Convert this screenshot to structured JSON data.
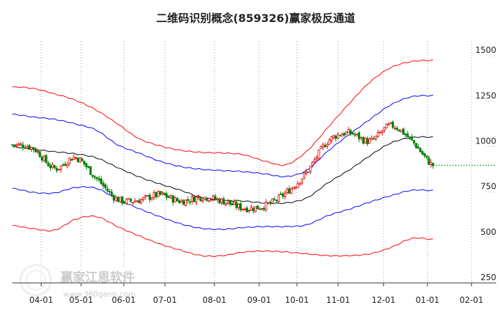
{
  "chart_data": {
    "type": "candlestick",
    "title": "二维码识别概念(859326)赢家极反通道",
    "xlabel": "",
    "ylabel": "",
    "y_ticks": [
      250,
      500,
      750,
      1000,
      1250,
      1500
    ],
    "ylim": [
      250,
      1580
    ],
    "x_ticks": [
      "04-01",
      "05-01",
      "06-01",
      "07-01",
      "08-01",
      "09-01",
      "10-01",
      "11-01",
      "12-01",
      "01-01",
      "02-01"
    ],
    "grid": "vertical dotted",
    "colors": {
      "up": "#e00000",
      "down": "#008000",
      "outer_band": "#ff0000",
      "inner_band": "#0000ff",
      "midline": "#000000",
      "last_price": "#008000"
    },
    "last_price": 897,
    "months": [
      {
        "m": "03-15",
        "close": 1010,
        "outer_upper": 1328,
        "inner_upper": 1178,
        "mid": 1000,
        "inner_lower": 770,
        "outer_lower": 565
      },
      {
        "m": "04-01",
        "close": 990,
        "outer_upper": 1320,
        "inner_upper": 1163,
        "mid": 985,
        "inner_lower": 748,
        "outer_lower": 548
      },
      {
        "m": "04-15",
        "close": 880,
        "outer_upper": 1290,
        "inner_upper": 1150,
        "mid": 972,
        "inner_lower": 745,
        "outer_lower": 540
      },
      {
        "m": "05-01",
        "close": 940,
        "outer_upper": 1255,
        "inner_upper": 1125,
        "mid": 960,
        "inner_lower": 775,
        "outer_lower": 600
      },
      {
        "m": "05-15",
        "close": 825,
        "outer_upper": 1200,
        "inner_upper": 1090,
        "mid": 938,
        "inner_lower": 770,
        "outer_lower": 615
      },
      {
        "m": "06-01",
        "close": 710,
        "outer_upper": 1125,
        "inner_upper": 1010,
        "mid": 885,
        "inner_lower": 710,
        "outer_lower": 560
      },
      {
        "m": "06-15",
        "close": 705,
        "outer_upper": 1045,
        "inner_upper": 965,
        "mid": 835,
        "inner_lower": 660,
        "outer_lower": 510
      },
      {
        "m": "07-01",
        "close": 735,
        "outer_upper": 1005,
        "inner_upper": 920,
        "mid": 795,
        "inner_lower": 615,
        "outer_lower": 465
      },
      {
        "m": "07-15",
        "close": 700,
        "outer_upper": 980,
        "inner_upper": 890,
        "mid": 760,
        "inner_lower": 575,
        "outer_lower": 430
      },
      {
        "m": "08-01",
        "close": 722,
        "outer_upper": 968,
        "inner_upper": 875,
        "mid": 720,
        "inner_lower": 550,
        "outer_lower": 400
      },
      {
        "m": "08-15",
        "close": 700,
        "outer_upper": 965,
        "inner_upper": 868,
        "mid": 705,
        "inner_lower": 545,
        "outer_lower": 400
      },
      {
        "m": "09-01",
        "close": 662,
        "outer_upper": 955,
        "inner_upper": 862,
        "mid": 700,
        "inner_lower": 555,
        "outer_lower": 420
      },
      {
        "m": "09-15",
        "close": 675,
        "outer_upper": 920,
        "inner_upper": 850,
        "mid": 690,
        "inner_lower": 560,
        "outer_lower": 425
      },
      {
        "m": "10-01",
        "close": 745,
        "outer_upper": 900,
        "inner_upper": 835,
        "mid": 690,
        "inner_lower": 560,
        "outer_lower": 420
      },
      {
        "m": "10-15",
        "close": 860,
        "outer_upper": 975,
        "inner_upper": 870,
        "mid": 718,
        "inner_lower": 570,
        "outer_lower": 410
      },
      {
        "m": "11-01",
        "close": 1030,
        "outer_upper": 1105,
        "inner_upper": 975,
        "mid": 800,
        "inner_lower": 620,
        "outer_lower": 400
      },
      {
        "m": "11-15",
        "close": 1075,
        "outer_upper": 1235,
        "inner_upper": 1065,
        "mid": 870,
        "inner_lower": 655,
        "outer_lower": 400
      },
      {
        "m": "12-01",
        "close": 1030,
        "outer_upper": 1355,
        "inner_upper": 1150,
        "mid": 950,
        "inner_lower": 695,
        "outer_lower": 410
      },
      {
        "m": "12-15",
        "close": 1115,
        "outer_upper": 1435,
        "inner_upper": 1230,
        "mid": 1020,
        "inner_lower": 730,
        "outer_lower": 445
      },
      {
        "m": "01-01",
        "close": 1030,
        "outer_upper": 1468,
        "inner_upper": 1275,
        "mid": 1050,
        "inner_lower": 760,
        "outer_lower": 495
      },
      {
        "m": "01-10",
        "close": 897,
        "outer_upper": 1475,
        "inner_upper": 1280,
        "mid": 1052,
        "inner_lower": 758,
        "outer_lower": 490
      }
    ]
  },
  "watermark": {
    "text": "赢家江恩软件",
    "url": "www.360gann.com"
  }
}
